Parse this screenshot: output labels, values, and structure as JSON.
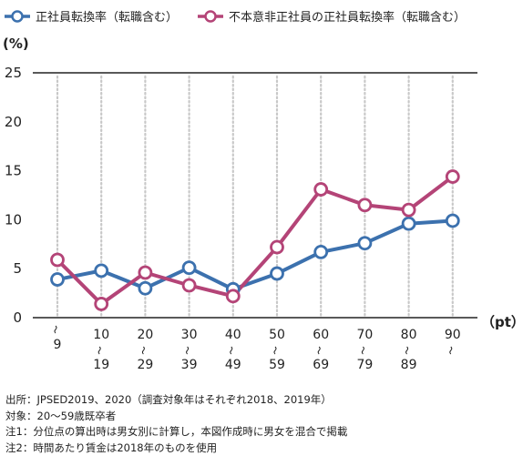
{
  "chart_data": {
    "type": "line",
    "ylabel": "(%)",
    "xlabel": "（pt）",
    "ylim": [
      0,
      25
    ],
    "yticks": [
      0,
      5,
      10,
      15,
      20,
      25
    ],
    "grid": "vertical-dotted",
    "legend_position": "top",
    "categories": [
      {
        "top": "",
        "bottom": "9"
      },
      {
        "top": "10",
        "bottom": "19"
      },
      {
        "top": "20",
        "bottom": "29"
      },
      {
        "top": "30",
        "bottom": "39"
      },
      {
        "top": "40",
        "bottom": "49"
      },
      {
        "top": "50",
        "bottom": "59"
      },
      {
        "top": "60",
        "bottom": "69"
      },
      {
        "top": "70",
        "bottom": "79"
      },
      {
        "top": "80",
        "bottom": "89"
      },
      {
        "top": "90",
        "bottom": ""
      }
    ],
    "series": [
      {
        "name": "正社員転換率（転職含む）",
        "color": "#3c71ae",
        "values": [
          3.9,
          4.8,
          3.0,
          5.1,
          2.9,
          4.5,
          6.7,
          7.6,
          9.6,
          9.9
        ]
      },
      {
        "name": "不本意非正社員の正社員転換率（転職含む）",
        "color": "#b44477",
        "values": [
          5.9,
          1.4,
          4.6,
          3.3,
          2.2,
          7.2,
          13.1,
          11.5,
          11.0,
          14.4
        ]
      }
    ]
  },
  "notes": [
    "出所：JPSED2019、2020（調査対象年はそれぞれ2018、2019年）",
    "対象：20～59歳既卒者",
    "注1：分位点の算出時は男女別に計算し，本図作成時に男女を混合で掲載",
    "注2：時間あたり賃金は2018年のものを使用"
  ]
}
